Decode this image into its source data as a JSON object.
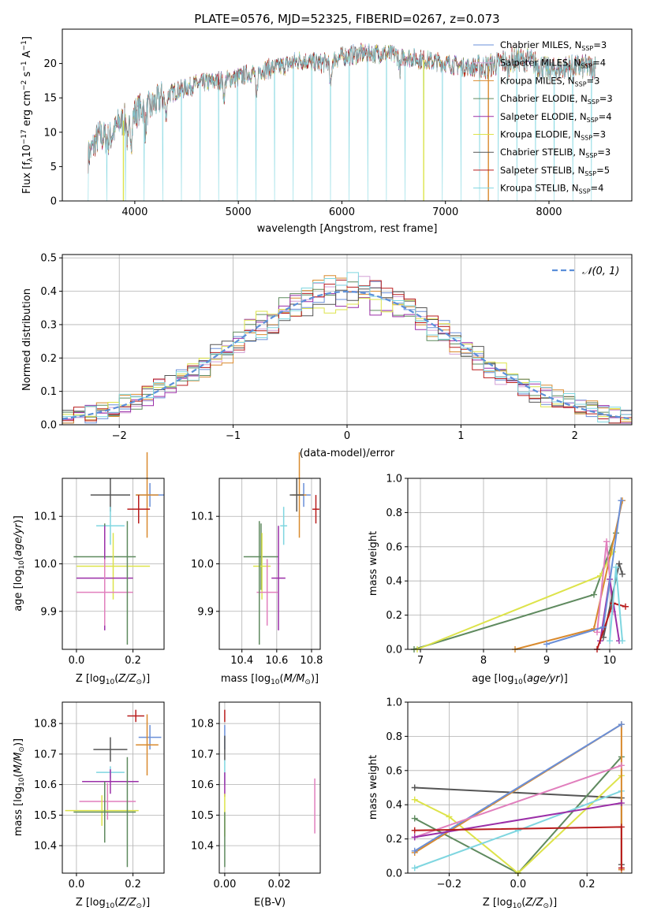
{
  "chart_data": [
    {
      "type": "line",
      "title": "PLATE=0576, MJD=52325, FIBERID=0267, z=0.073",
      "xlabel": "wavelength [Angstrom, rest frame]",
      "ylabel": "Flux [fλ10^-17 erg cm^-2 s^-1 A^-1]",
      "xlim": [
        3300,
        8800
      ],
      "ylim": [
        0,
        25
      ],
      "xticks": [
        "4000",
        "5000",
        "6000",
        "7000",
        "8000"
      ],
      "yticks": [
        "0",
        "5",
        "10",
        "15",
        "20"
      ],
      "grid": false,
      "legend_position": "right",
      "spectrum_anchors": {
        "x": [
          3550,
          3650,
          3750,
          3850,
          3950,
          4050,
          4150,
          4250,
          4400,
          4600,
          4800,
          5000,
          5200,
          5400,
          5600,
          5800,
          6000,
          6200,
          6400,
          6600,
          6800,
          7000,
          7200,
          7400,
          7600,
          7800,
          8000,
          8200,
          8450
        ],
        "y": [
          6.5,
          9.5,
          9,
          11.5,
          12,
          13.5,
          13.5,
          15,
          16,
          17,
          17.5,
          18,
          19,
          19.5,
          20.5,
          20,
          21,
          21.5,
          21.5,
          21,
          20.5,
          20,
          19.5,
          19.5,
          20.5,
          20.5,
          19,
          19.5,
          19.5
        ]
      },
      "series": [
        {
          "name": "Chabrier MILES, N_SSP=3",
          "color": "#6a8fd8"
        },
        {
          "name": "Salpeter MILES, N_SSP=4",
          "color": "#d3a0d6"
        },
        {
          "name": "Kroupa MILES, N_SSP=3",
          "color": "#d98a2e"
        },
        {
          "name": "Chabrier ELODIE, N_SSP=3",
          "color": "#5f8a5f"
        },
        {
          "name": "Salpeter ELODIE, N_SSP=4",
          "color": "#9b2fa8"
        },
        {
          "name": "Kroupa ELODIE, N_SSP=3",
          "color": "#dde34a"
        },
        {
          "name": "Chabrier STELIB, N_SSP=3",
          "color": "#555555"
        },
        {
          "name": "Salpeter STELIB, N_SSP=5",
          "color": "#b81c1c"
        },
        {
          "name": "Kroupa STELIB, N_SSP=4",
          "color": "#7fd6e0"
        }
      ]
    },
    {
      "type": "step",
      "xlabel": "(data-model)/error",
      "ylabel": "Normed distribution",
      "xlim": [
        -2.5,
        2.5
      ],
      "ylim": [
        0,
        0.51
      ],
      "xticks": [
        "−2",
        "−1",
        "0",
        "1",
        "2"
      ],
      "yticks": [
        "0.0",
        "0.1",
        "0.2",
        "0.3",
        "0.4",
        "0.5"
      ],
      "grid": true,
      "legend": "N(0,1)",
      "legend_position": "top-right"
    },
    {
      "type": "errorbar",
      "xlabel": "Z [log10(Z/Z⊙)]",
      "ylabel": "age  [log10(age/yr)]",
      "xlim": [
        -0.05,
        0.31
      ],
      "ylim": [
        9.82,
        10.18
      ],
      "xticks": [
        "0.0",
        "0.2"
      ],
      "yticks": [
        "9.9",
        "10.0",
        "10.1"
      ],
      "points": [
        {
          "x": 0.26,
          "y": 10.145,
          "xerr": 0.05,
          "yerr": 0.025,
          "color": "#6a8fd8"
        },
        {
          "x": 0.25,
          "y": 10.145,
          "xerr": 0.04,
          "yerr": 0.09,
          "color": "#d98a2e"
        },
        {
          "x": 0.22,
          "y": 10.115,
          "xerr": 0.04,
          "yerr": 0.03,
          "color": "#b81c1c"
        },
        {
          "x": 0.12,
          "y": 10.145,
          "xerr": 0.07,
          "yerr": 0.035,
          "color": "#555555"
        },
        {
          "x": 0.12,
          "y": 10.08,
          "xerr": 0.05,
          "yerr": 0.04,
          "color": "#7fd6e0"
        },
        {
          "x": 0.1,
          "y": 10.015,
          "xerr": 0.11,
          "yerr": 0.07,
          "color": "#5f8a5f"
        },
        {
          "x": 0.13,
          "y": 9.995,
          "xerr": 0.13,
          "yerr": 0.07,
          "color": "#dde34a"
        },
        {
          "x": 0.1,
          "y": 9.97,
          "xerr": 0.1,
          "yerr": 0.11,
          "color": "#9b2fa8"
        },
        {
          "x": 0.1,
          "y": 9.94,
          "xerr": 0.1,
          "yerr": 0.07,
          "color": "#e17fbd"
        },
        {
          "x": 0.18,
          "y": 9.96,
          "xerr": 0.0,
          "yerr": 0.13,
          "color": "#5f8a5f"
        }
      ]
    },
    {
      "type": "errorbar",
      "xlabel": "mass [log10(M/M⊙)]",
      "ylabel": "",
      "xlim": [
        10.27,
        10.85
      ],
      "ylim": [
        9.82,
        10.18
      ],
      "xticks": [
        "10.4",
        "10.6",
        "10.8"
      ],
      "yticks": [
        "9.9",
        "10.0",
        "10.1"
      ],
      "points": [
        {
          "x": 10.755,
          "y": 10.145,
          "xerr": 0.04,
          "yerr": 0.025,
          "color": "#6a8fd8"
        },
        {
          "x": 10.73,
          "y": 10.145,
          "xerr": 0.04,
          "yerr": 0.09,
          "color": "#d98a2e"
        },
        {
          "x": 10.825,
          "y": 10.115,
          "xerr": 0.02,
          "yerr": 0.03,
          "color": "#b81c1c"
        },
        {
          "x": 10.715,
          "y": 10.145,
          "xerr": 0.04,
          "yerr": 0.035,
          "color": "#555555"
        },
        {
          "x": 10.64,
          "y": 10.08,
          "xerr": 0.02,
          "yerr": 0.04,
          "color": "#7fd6e0"
        },
        {
          "x": 10.51,
          "y": 10.015,
          "xerr": 0.1,
          "yerr": 0.07,
          "color": "#5f8a5f"
        },
        {
          "x": 10.515,
          "y": 9.995,
          "xerr": 0.05,
          "yerr": 0.07,
          "color": "#dde34a"
        },
        {
          "x": 10.61,
          "y": 9.97,
          "xerr": 0.04,
          "yerr": 0.11,
          "color": "#9b2fa8"
        },
        {
          "x": 10.545,
          "y": 9.94,
          "xerr": 0.06,
          "yerr": 0.07,
          "color": "#e17fbd"
        },
        {
          "x": 10.5,
          "y": 9.96,
          "xerr": 0.0,
          "yerr": 0.13,
          "color": "#5f8a5f"
        }
      ]
    },
    {
      "type": "line",
      "xlabel": "age  [log10(age/yr)]",
      "ylabel": "mass weight",
      "xlim": [
        6.8,
        10.35
      ],
      "ylim": [
        0,
        1
      ],
      "xticks": [
        "7",
        "8",
        "9",
        "10"
      ],
      "yticks": [
        "0.0",
        "0.2",
        "0.4",
        "0.6",
        "0.8",
        "1.0"
      ],
      "series": [
        {
          "color": "#5f8a5f",
          "x": [
            6.9,
            9.75,
            10.1
          ],
          "y": [
            0.0,
            0.32,
            0.68
          ]
        },
        {
          "color": "#dde34a",
          "x": [
            6.95,
            9.85,
            10.05
          ],
          "y": [
            0.0,
            0.43,
            0.57
          ]
        },
        {
          "color": "#d98a2e",
          "x": [
            8.5,
            9.75,
            10.2
          ],
          "y": [
            0.0,
            0.12,
            0.87
          ]
        },
        {
          "color": "#e17fbd",
          "x": [
            9.8,
            9.95,
            10.05
          ],
          "y": [
            0.1,
            0.63,
            0.22
          ]
        },
        {
          "color": "#9b2fa8",
          "x": [
            9.85,
            10.0,
            10.15
          ],
          "y": [
            0.05,
            0.41,
            0.05
          ]
        },
        {
          "color": "#555555",
          "x": [
            9.9,
            10.15,
            10.2
          ],
          "y": [
            0.07,
            0.5,
            0.44
          ]
        },
        {
          "color": "#b81c1c",
          "x": [
            9.8,
            10.05,
            10.25
          ],
          "y": [
            0.0,
            0.27,
            0.25
          ]
        },
        {
          "color": "#7fd6e0",
          "x": [
            10.0,
            10.1,
            10.2
          ],
          "y": [
            0.05,
            0.48,
            0.05
          ]
        },
        {
          "color": "#6a8fd8",
          "x": [
            9.0,
            9.9,
            10.18
          ],
          "y": [
            0.03,
            0.13,
            0.87
          ]
        }
      ]
    },
    {
      "type": "errorbar",
      "xlabel": "Z [log10(Z/Z⊙)]",
      "ylabel": "mass [log10(M/M⊙)]",
      "xlim": [
        -0.05,
        0.31
      ],
      "ylim": [
        10.31,
        10.87
      ],
      "xticks": [
        "0.0",
        "0.2"
      ],
      "yticks": [
        "10.4",
        "10.5",
        "10.6",
        "10.7",
        "10.8"
      ],
      "points": [
        {
          "x": 0.26,
          "y": 10.755,
          "xerr": 0.04,
          "yerr": 0.04,
          "color": "#6a8fd8"
        },
        {
          "x": 0.25,
          "y": 10.73,
          "xerr": 0.04,
          "yerr": 0.1,
          "color": "#d98a2e"
        },
        {
          "x": 0.21,
          "y": 10.825,
          "xerr": 0.03,
          "yerr": 0.02,
          "color": "#b81c1c"
        },
        {
          "x": 0.12,
          "y": 10.715,
          "xerr": 0.06,
          "yerr": 0.04,
          "color": "#555555"
        },
        {
          "x": 0.12,
          "y": 10.64,
          "xerr": 0.05,
          "yerr": 0.02,
          "color": "#7fd6e0"
        },
        {
          "x": 0.12,
          "y": 10.61,
          "xerr": 0.1,
          "yerr": 0.04,
          "color": "#9b2fa8"
        },
        {
          "x": 0.11,
          "y": 10.545,
          "xerr": 0.1,
          "yerr": 0.06,
          "color": "#e17fbd"
        },
        {
          "x": 0.09,
          "y": 10.515,
          "xerr": 0.13,
          "yerr": 0.05,
          "color": "#dde34a"
        },
        {
          "x": 0.1,
          "y": 10.51,
          "xerr": 0.11,
          "yerr": 0.1,
          "color": "#5f8a5f"
        },
        {
          "x": 0.18,
          "y": 10.51,
          "xerr": 0.0,
          "yerr": 0.18,
          "color": "#5f8a5f"
        }
      ]
    },
    {
      "type": "errorbar",
      "xlabel": "E(B-V)",
      "ylabel": "",
      "xlim": [
        -0.002,
        0.035
      ],
      "ylim": [
        10.31,
        10.87
      ],
      "xticks": [
        "0.00",
        "0.02"
      ],
      "yticks": [
        "10.4",
        "10.5",
        "10.6",
        "10.7",
        "10.8"
      ],
      "points": [
        {
          "x": 0.0,
          "y": 10.825,
          "yerr": 0.02,
          "color": "#b81c1c"
        },
        {
          "x": 0.0,
          "y": 10.755,
          "yerr": 0.04,
          "color": "#6a8fd8"
        },
        {
          "x": 0.0,
          "y": 10.72,
          "yerr": 0.04,
          "color": "#555555"
        },
        {
          "x": 0.0,
          "y": 10.64,
          "yerr": 0.04,
          "color": "#7fd6e0"
        },
        {
          "x": 0.0,
          "y": 10.6,
          "yerr": 0.04,
          "color": "#9b2fa8"
        },
        {
          "x": 0.0,
          "y": 10.5,
          "yerr": 0.07,
          "color": "#dde34a"
        },
        {
          "x": 0.0,
          "y": 10.42,
          "yerr": 0.09,
          "color": "#5f8a5f"
        },
        {
          "x": 0.033,
          "y": 10.53,
          "yerr": 0.09,
          "color": "#e17fbd"
        }
      ]
    },
    {
      "type": "line",
      "xlabel": "Z [log10(Z/Z⊙)]",
      "ylabel": "mass weight",
      "xlim": [
        -0.32,
        0.33
      ],
      "ylim": [
        0,
        1
      ],
      "xticks": [
        "−0.2",
        "0.0",
        "0.2"
      ],
      "yticks": [
        "0.0",
        "0.2",
        "0.4",
        "0.6",
        "0.8",
        "1.0"
      ],
      "series": [
        {
          "color": "#555555",
          "x": [
            -0.3,
            0.3,
            0.3
          ],
          "y": [
            0.5,
            0.44,
            0.05
          ]
        },
        {
          "color": "#5f8a5f",
          "x": [
            -0.3,
            0.0,
            0.3
          ],
          "y": [
            0.32,
            0.0,
            0.68
          ]
        },
        {
          "color": "#dde34a",
          "x": [
            -0.3,
            -0.2,
            0.0,
            0.3
          ],
          "y": [
            0.43,
            0.33,
            0.0,
            0.57
          ]
        },
        {
          "color": "#7fd6e0",
          "x": [
            -0.3,
            0.0,
            0.3
          ],
          "y": [
            0.03,
            0.25,
            0.48
          ]
        },
        {
          "color": "#d98a2e",
          "x": [
            -0.3,
            0.3,
            0.3
          ],
          "y": [
            0.12,
            0.87,
            0.02
          ]
        },
        {
          "color": "#6a8fd8",
          "x": [
            -0.3,
            0.3
          ],
          "y": [
            0.13,
            0.87
          ]
        },
        {
          "color": "#e17fbd",
          "x": [
            -0.3,
            0.3
          ],
          "y": [
            0.21,
            0.63
          ]
        },
        {
          "color": "#9b2fa8",
          "x": [
            -0.3,
            0.3
          ],
          "y": [
            0.21,
            0.41
          ]
        },
        {
          "color": "#b81c1c",
          "x": [
            -0.3,
            0.3,
            0.3
          ],
          "y": [
            0.25,
            0.27,
            0.03
          ]
        }
      ]
    }
  ]
}
